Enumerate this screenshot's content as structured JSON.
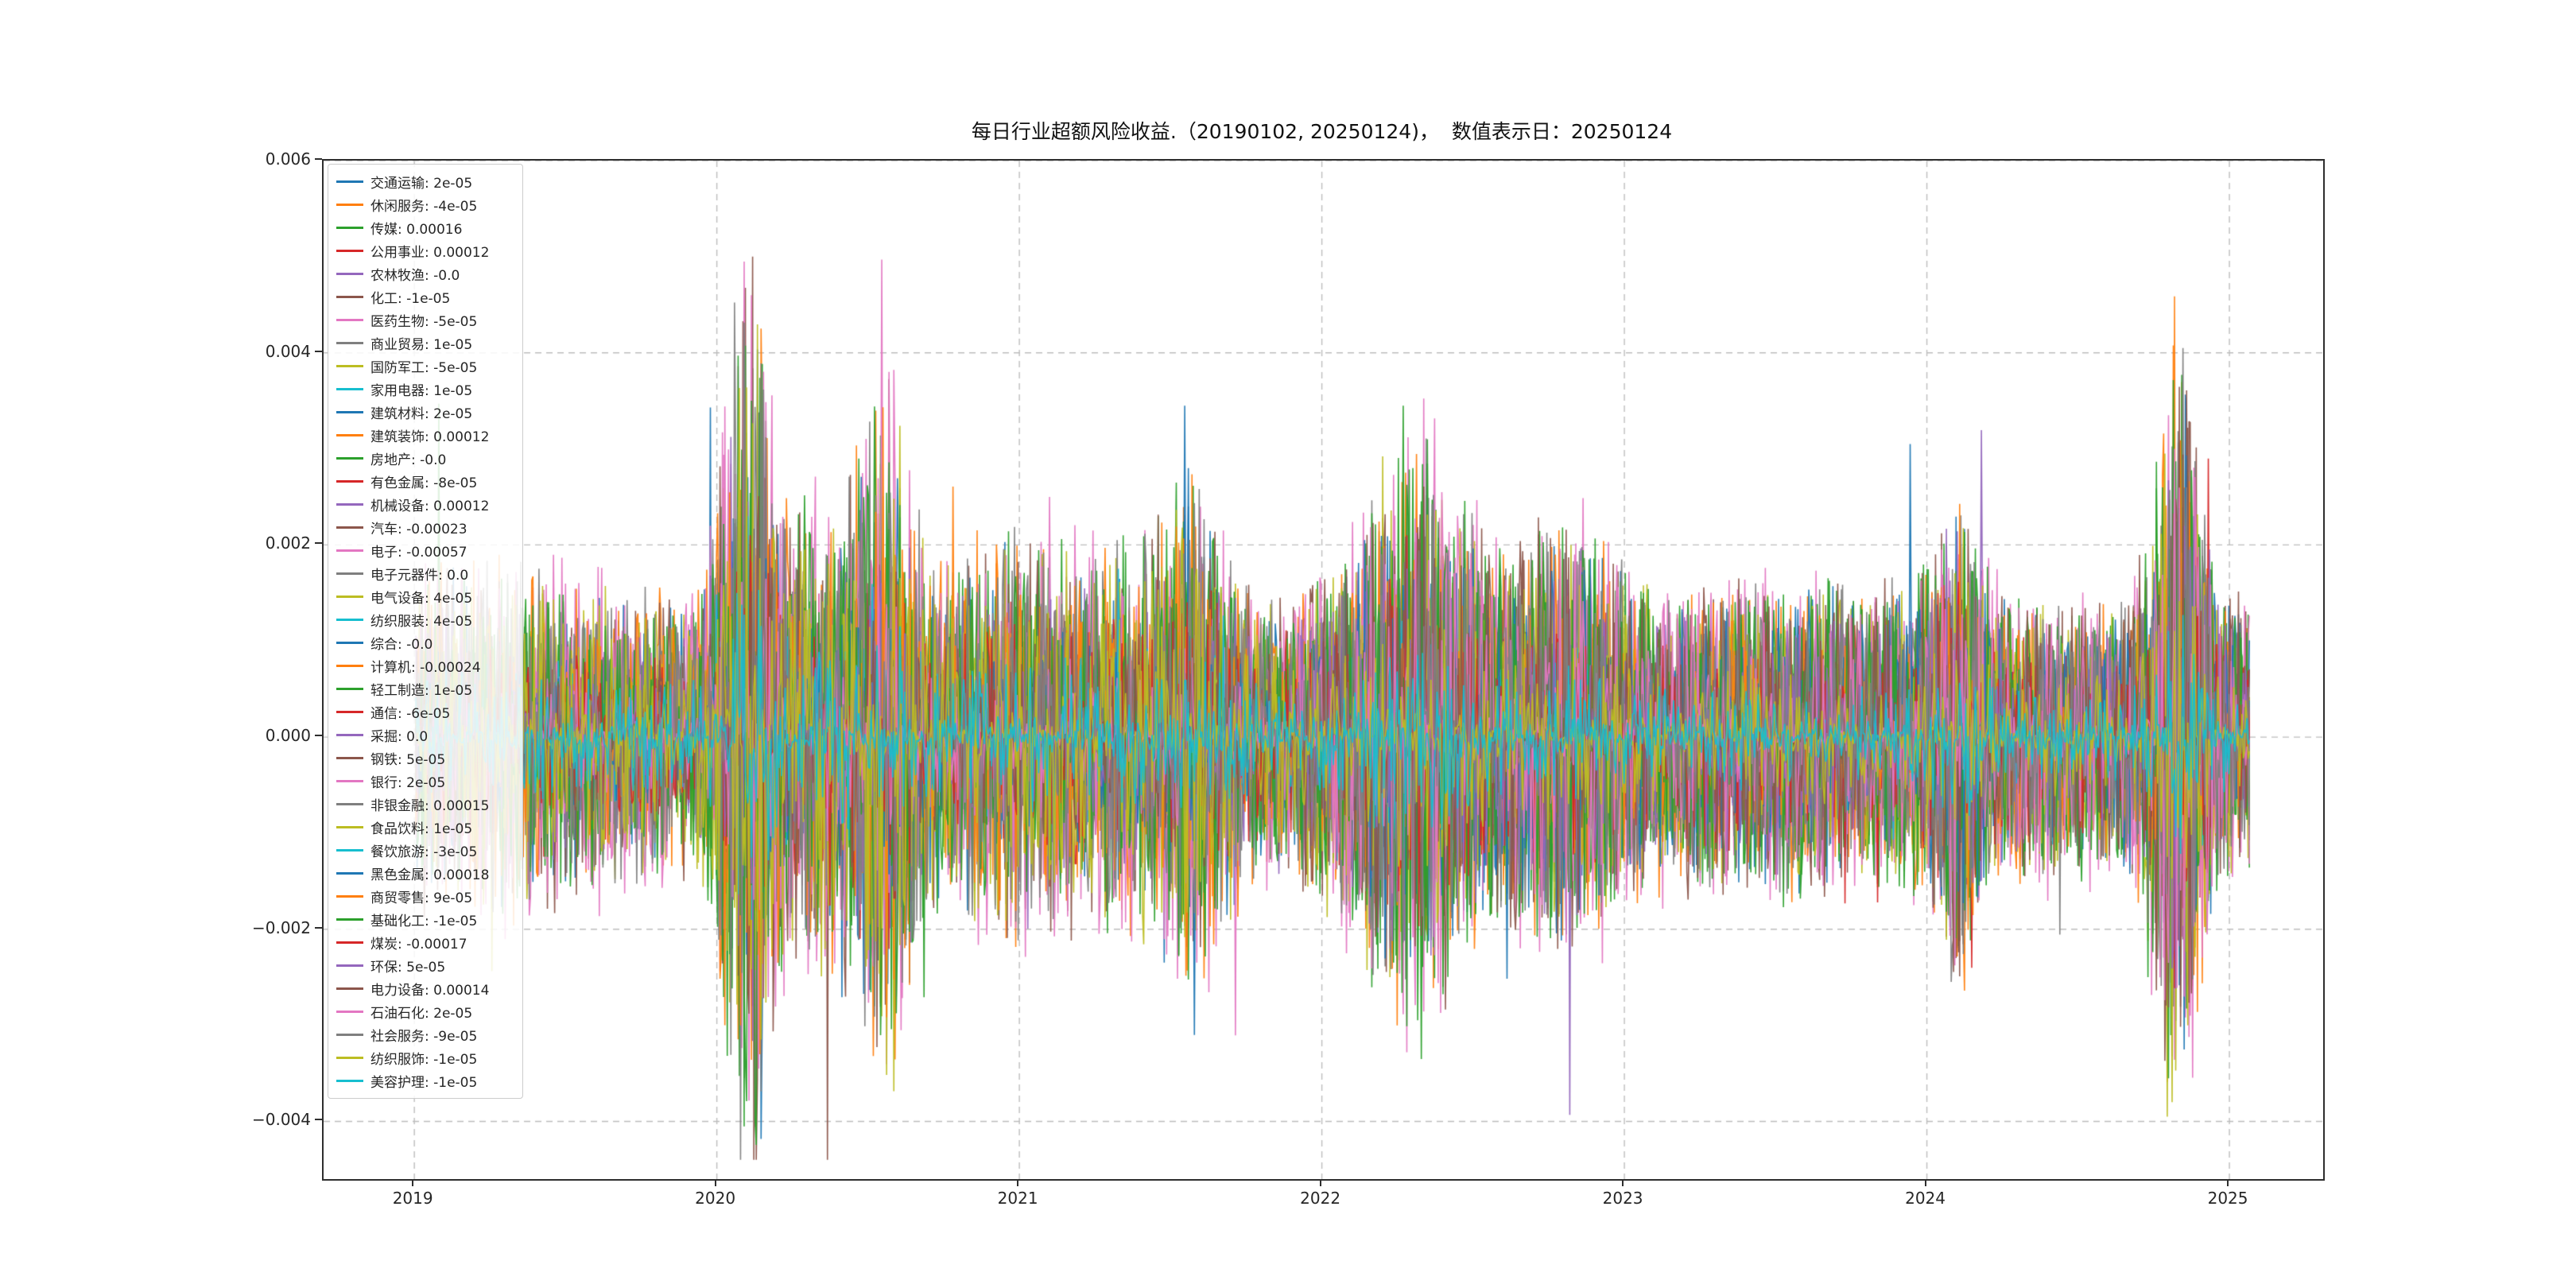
{
  "chart_data": {
    "type": "line",
    "title": "每日行业超额风险收益.（20190102, 20250124)，  数值表示日：20250124",
    "date_range": {
      "start": "20190102",
      "end": "20250124"
    },
    "value_date": "20250124",
    "xlabel": "",
    "ylabel": "",
    "x_ticks": [
      "2019",
      "2020",
      "2021",
      "2022",
      "2023",
      "2024",
      "2025"
    ],
    "x_tick_values": [
      2019,
      2020,
      2021,
      2022,
      2023,
      2024,
      2025
    ],
    "y_ticks": [
      "0.006",
      "0.004",
      "0.002",
      "0.000",
      "−0.002",
      "−0.004"
    ],
    "y_tick_values": [
      0.006,
      0.004,
      0.002,
      0.0,
      -0.002,
      -0.004
    ],
    "xlim": [
      2018.7,
      2025.31
    ],
    "ylim": [
      -0.0046,
      0.006
    ],
    "grid": "dashed",
    "legend_position": "upper left",
    "description": "40 overlapping daily industry excess risk-return series oscillating around 0, volatility spikes near 2020, 2022 and late 2024; extreme values about +0.005 and -0.004",
    "series": [
      {
        "name": "交通运输",
        "value": 2e-05,
        "label": "交通运输: 2e-05",
        "color": "#1f77b4"
      },
      {
        "name": "休闲服务",
        "value": -4e-05,
        "label": "休闲服务: -4e-05",
        "color": "#ff7f0e"
      },
      {
        "name": "传媒",
        "value": 0.00016,
        "label": "传媒: 0.00016",
        "color": "#2ca02c"
      },
      {
        "name": "公用事业",
        "value": 0.00012,
        "label": "公用事业: 0.00012",
        "color": "#d62728"
      },
      {
        "name": "农林牧渔",
        "value": -0.0,
        "label": "农林牧渔: -0.0",
        "color": "#9467bd"
      },
      {
        "name": "化工",
        "value": -1e-05,
        "label": "化工: -1e-05",
        "color": "#8c564b"
      },
      {
        "name": "医药生物",
        "value": -5e-05,
        "label": "医药生物: -5e-05",
        "color": "#e377c2"
      },
      {
        "name": "商业贸易",
        "value": 1e-05,
        "label": "商业贸易: 1e-05",
        "color": "#7f7f7f"
      },
      {
        "name": "国防军工",
        "value": -5e-05,
        "label": "国防军工: -5e-05",
        "color": "#bcbd22"
      },
      {
        "name": "家用电器",
        "value": 1e-05,
        "label": "家用电器: 1e-05",
        "color": "#17becf"
      },
      {
        "name": "建筑材料",
        "value": 2e-05,
        "label": "建筑材料: 2e-05",
        "color": "#1f77b4"
      },
      {
        "name": "建筑装饰",
        "value": 0.00012,
        "label": "建筑装饰: 0.00012",
        "color": "#ff7f0e"
      },
      {
        "name": "房地产",
        "value": -0.0,
        "label": "房地产: -0.0",
        "color": "#2ca02c"
      },
      {
        "name": "有色金属",
        "value": -8e-05,
        "label": "有色金属: -8e-05",
        "color": "#d62728"
      },
      {
        "name": "机械设备",
        "value": 0.00012,
        "label": "机械设备: 0.00012",
        "color": "#9467bd"
      },
      {
        "name": "汽车",
        "value": -0.00023,
        "label": "汽车: -0.00023",
        "color": "#8c564b"
      },
      {
        "name": "电子",
        "value": -0.00057,
        "label": "电子: -0.00057",
        "color": "#e377c2"
      },
      {
        "name": "电子元器件",
        "value": 0.0,
        "label": "电子元器件: 0.0",
        "color": "#7f7f7f"
      },
      {
        "name": "电气设备",
        "value": 4e-05,
        "label": "电气设备: 4e-05",
        "color": "#bcbd22"
      },
      {
        "name": "纺织服装",
        "value": 4e-05,
        "label": "纺织服装: 4e-05",
        "color": "#17becf"
      },
      {
        "name": "综合",
        "value": -0.0,
        "label": "综合: -0.0",
        "color": "#1f77b4"
      },
      {
        "name": "计算机",
        "value": -0.00024,
        "label": "计算机: -0.00024",
        "color": "#ff7f0e"
      },
      {
        "name": "轻工制造",
        "value": 1e-05,
        "label": "轻工制造: 1e-05",
        "color": "#2ca02c"
      },
      {
        "name": "通信",
        "value": -6e-05,
        "label": "通信: -6e-05",
        "color": "#d62728"
      },
      {
        "name": "采掘",
        "value": 0.0,
        "label": "采掘: 0.0",
        "color": "#9467bd"
      },
      {
        "name": "钢铁",
        "value": 5e-05,
        "label": "钢铁: 5e-05",
        "color": "#8c564b"
      },
      {
        "name": "银行",
        "value": 2e-05,
        "label": "银行: 2e-05",
        "color": "#e377c2"
      },
      {
        "name": "非银金融",
        "value": 0.00015,
        "label": "非银金融: 0.00015",
        "color": "#7f7f7f"
      },
      {
        "name": "食品饮料",
        "value": 1e-05,
        "label": "食品饮料: 1e-05",
        "color": "#bcbd22"
      },
      {
        "name": "餐饮旅游",
        "value": -3e-05,
        "label": "餐饮旅游: -3e-05",
        "color": "#17becf"
      },
      {
        "name": "黑色金属",
        "value": 0.00018,
        "label": "黑色金属: 0.00018",
        "color": "#1f77b4"
      },
      {
        "name": "商贸零售",
        "value": 9e-05,
        "label": "商贸零售: 9e-05",
        "color": "#ff7f0e"
      },
      {
        "name": "基础化工",
        "value": -1e-05,
        "label": "基础化工: -1e-05",
        "color": "#2ca02c"
      },
      {
        "name": "煤炭",
        "value": -0.00017,
        "label": "煤炭: -0.00017",
        "color": "#d62728"
      },
      {
        "name": "环保",
        "value": 5e-05,
        "label": "环保: 5e-05",
        "color": "#9467bd"
      },
      {
        "name": "电力设备",
        "value": 0.00014,
        "label": "电力设备: 0.00014",
        "color": "#8c564b"
      },
      {
        "name": "石油石化",
        "value": 2e-05,
        "label": "石油石化: 2e-05",
        "color": "#e377c2"
      },
      {
        "name": "社会服务",
        "value": -9e-05,
        "label": "社会服务: -9e-05",
        "color": "#7f7f7f"
      },
      {
        "name": "纺织服饰",
        "value": -1e-05,
        "label": "纺织服饰: -1e-05",
        "color": "#bcbd22"
      },
      {
        "name": "美容护理",
        "value": -1e-05,
        "label": "美容护理: -1e-05",
        "color": "#17becf"
      }
    ]
  }
}
